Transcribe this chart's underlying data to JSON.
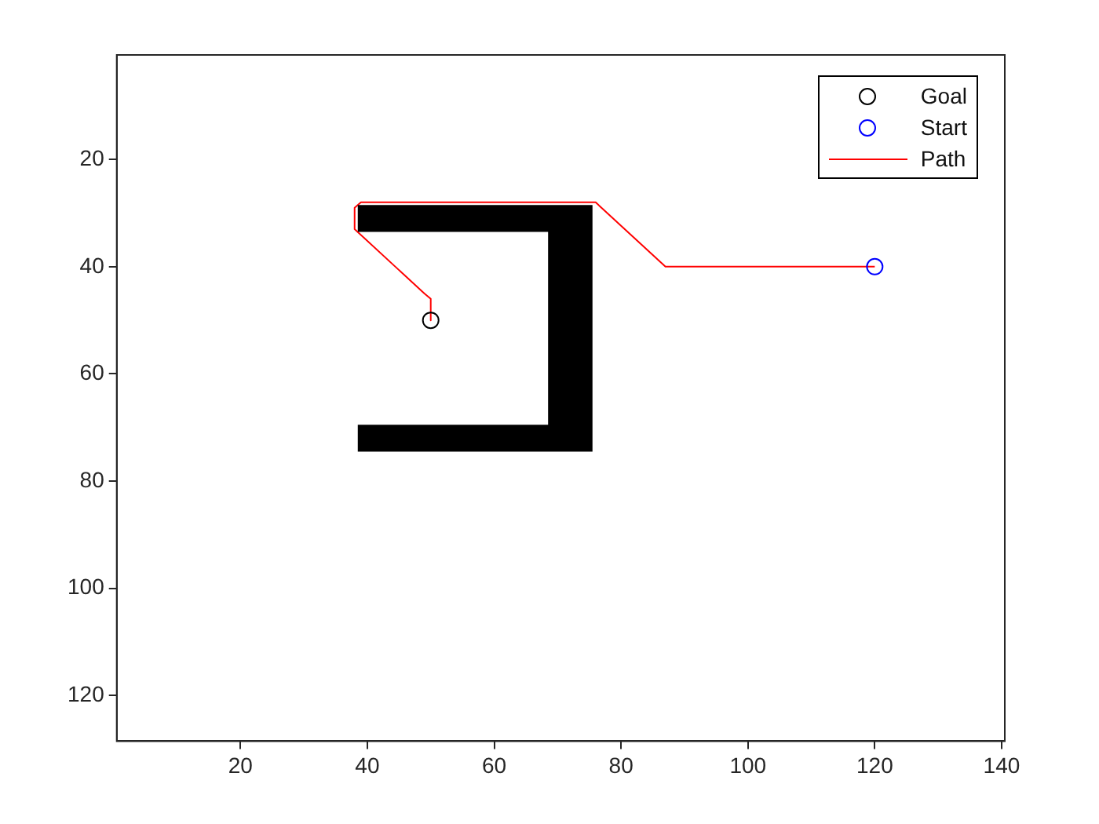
{
  "chart_data": {
    "type": "scatter",
    "xlim": [
      0.5,
      140.5
    ],
    "ylim": [
      128.5,
      0.5
    ],
    "xticks": [
      20,
      40,
      60,
      80,
      100,
      120,
      140
    ],
    "yticks": [
      20,
      40,
      60,
      80,
      100,
      120
    ],
    "grid": false,
    "legend": "top right",
    "marker": "circle",
    "series": [
      {
        "type": "area",
        "marker": "none",
        "color": "#000000",
        "x": [
          38.5,
          75.5,
          75.5,
          38.5,
          38.5,
          68.5,
          68.5,
          38.5,
          38.5
        ],
        "values": [
          28.5,
          28.5,
          74.5,
          74.5,
          69.5,
          69.5,
          33.5,
          33.5,
          28.5
        ]
      },
      {
        "name": "Goal",
        "color": "#000000",
        "x": [
          50
        ],
        "values": [
          50
        ]
      },
      {
        "name": "Start",
        "color": "#0000ff",
        "x": [
          120
        ],
        "values": [
          40
        ]
      },
      {
        "name": "Path",
        "type": "line",
        "marker": "none",
        "color": "#ff0000",
        "x": [
          120,
          87,
          76,
          39,
          38,
          38,
          49,
          50,
          50
        ],
        "values": [
          40,
          40,
          28,
          28,
          29,
          33,
          45,
          46,
          50
        ]
      }
    ]
  }
}
